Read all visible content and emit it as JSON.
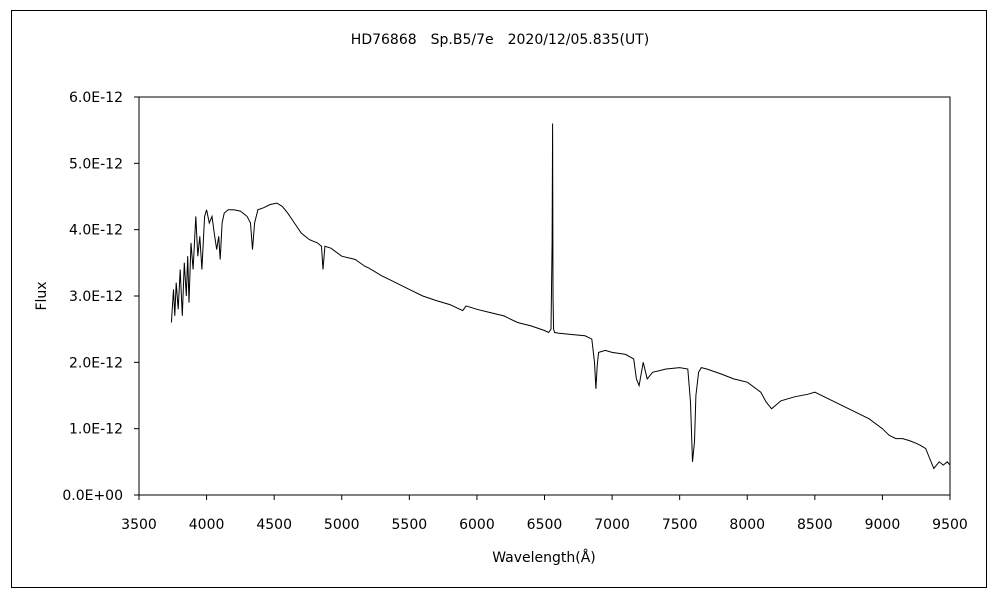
{
  "chart_data": {
    "type": "line",
    "title": "HD76868　Sp.B5/7e　2020/12/05.835(UT)",
    "xlabel": "Wavelength(Å)",
    "ylabel": "Flux",
    "xlim": [
      3500,
      9500
    ],
    "ylim": [
      0,
      6e-12
    ],
    "x_ticks": [
      3500,
      4000,
      4500,
      5000,
      5500,
      6000,
      6500,
      7000,
      7500,
      8000,
      8500,
      9000,
      9500
    ],
    "x_tick_labels": [
      "3500",
      "4000",
      "4500",
      "5000",
      "5500",
      "6000",
      "6500",
      "7000",
      "7500",
      "8000",
      "8500",
      "9000",
      "9500"
    ],
    "y_ticks": [
      0,
      1e-12,
      2e-12,
      3e-12,
      4e-12,
      5e-12,
      6e-12
    ],
    "y_tick_labels": [
      "0.0E+00",
      "1.0E-12",
      "2.0E-12",
      "3.0E-12",
      "4.0E-12",
      "5.0E-12",
      "6.0E-12"
    ],
    "grid": false,
    "legend": "none",
    "line_color": "#000000",
    "series": [
      {
        "x": [
          3740,
          3755,
          3765,
          3775,
          3790,
          3805,
          3820,
          3835,
          3850,
          3860,
          3870,
          3885,
          3900,
          3920,
          3935,
          3950,
          3965,
          3985,
          4000,
          4020,
          4040,
          4060,
          4075,
          4090,
          4101,
          4115,
          4130,
          4160,
          4200,
          4250,
          4300,
          4325,
          4340,
          4355,
          4380,
          4420,
          4471,
          4520,
          4560,
          4600,
          4650,
          4700,
          4760,
          4820,
          4850,
          4861,
          4875,
          4920,
          5000,
          5100,
          5169,
          5200,
          5300,
          5400,
          5500,
          5600,
          5700,
          5800,
          5895,
          5920,
          6000,
          6100,
          6200,
          6300,
          6400,
          6500,
          6530,
          6548,
          6556,
          6560,
          6563,
          6567,
          6575,
          6600,
          6700,
          6800,
          6850,
          6870,
          6880,
          6890,
          6900,
          6950,
          7000,
          7100,
          7160,
          7180,
          7200,
          7230,
          7260,
          7300,
          7400,
          7500,
          7560,
          7580,
          7595,
          7610,
          7620,
          7640,
          7660,
          7700,
          7800,
          7900,
          8000,
          8100,
          8140,
          8180,
          8250,
          8350,
          8450,
          8500,
          8600,
          8700,
          8800,
          8900,
          9000,
          9050,
          9100,
          9150,
          9200,
          9250,
          9280,
          9320,
          9350,
          9380,
          9420,
          9450,
          9480,
          9500
        ],
        "y": [
          2.6e-12,
          3.1e-12,
          2.7e-12,
          3.2e-12,
          2.8e-12,
          3.4e-12,
          2.7e-12,
          3.5e-12,
          3e-12,
          3.6e-12,
          2.9e-12,
          3.8e-12,
          3.4e-12,
          4.2e-12,
          3.6e-12,
          3.9e-12,
          3.4e-12,
          4.2e-12,
          4.3e-12,
          4.1e-12,
          4.2e-12,
          3.9e-12,
          3.7e-12,
          3.9e-12,
          3.55e-12,
          4.1e-12,
          4.25e-12,
          4.3e-12,
          4.3e-12,
          4.28e-12,
          4.2e-12,
          4.1e-12,
          3.7e-12,
          4.1e-12,
          4.3e-12,
          4.33e-12,
          4.38e-12,
          4.4e-12,
          4.35e-12,
          4.25e-12,
          4.1e-12,
          3.95e-12,
          3.85e-12,
          3.8e-12,
          3.75e-12,
          3.4e-12,
          3.75e-12,
          3.72e-12,
          3.6e-12,
          3.55e-12,
          3.45e-12,
          3.42e-12,
          3.3e-12,
          3.2e-12,
          3.1e-12,
          3e-12,
          2.93e-12,
          2.87e-12,
          2.78e-12,
          2.85e-12,
          2.8e-12,
          2.75e-12,
          2.7e-12,
          2.6e-12,
          2.55e-12,
          2.48e-12,
          2.45e-12,
          2.5e-12,
          3.8e-12,
          5.6e-12,
          3e-12,
          2.5e-12,
          2.45e-12,
          2.44e-12,
          2.42e-12,
          2.4e-12,
          2.35e-12,
          2e-12,
          1.6e-12,
          1.95e-12,
          2.15e-12,
          2.18e-12,
          2.15e-12,
          2.12e-12,
          2.05e-12,
          1.75e-12,
          1.65e-12,
          2e-12,
          1.75e-12,
          1.85e-12,
          1.9e-12,
          1.92e-12,
          1.9e-12,
          1.4e-12,
          5e-13,
          8e-13,
          1.5e-12,
          1.85e-12,
          1.92e-12,
          1.9e-12,
          1.83e-12,
          1.75e-12,
          1.7e-12,
          1.55e-12,
          1.4e-12,
          1.3e-12,
          1.42e-12,
          1.48e-12,
          1.52e-12,
          1.55e-12,
          1.45e-12,
          1.35e-12,
          1.25e-12,
          1.15e-12,
          1e-12,
          9e-13,
          8.5e-13,
          8.5e-13,
          8.2e-13,
          7.8e-13,
          7.5e-13,
          7e-13,
          5.5e-13,
          4e-13,
          5e-13,
          4.5e-13,
          5e-13,
          4.5e-13
        ]
      }
    ]
  }
}
